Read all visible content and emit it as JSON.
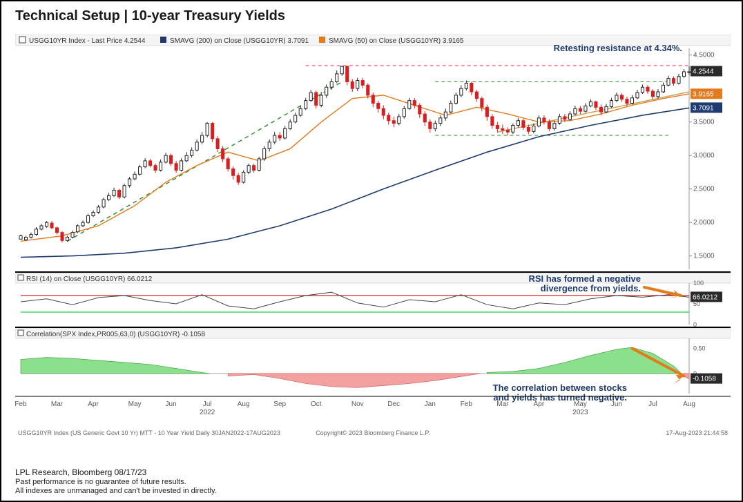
{
  "title": "Technical Setup | 10-year Treasury Yields",
  "legend": {
    "series1": "USGG10YR Index - Last Price 4.2544",
    "series2": "SMAVG (200)  on Close (USGG10YR) 3.7091",
    "series3": "SMAVG (50)  on Close (USGG10YR) 3.9165",
    "rsi": "RSI (14)  on Close (USGG10YR) 66.0212",
    "corr": "Correlation(SPX Index,PR005,63,0) (USGG10YR) -0.1058"
  },
  "annotations": {
    "resistance": "Retesting resistance at 4.34%.",
    "rsi_div1": "RSI has formed a negative",
    "rsi_div2": "divergence from yields.",
    "corr1": "The correlation between stocks",
    "corr2": "and yields has turned negative."
  },
  "price_markers": {
    "last": "4.2544",
    "sma50": "3.9165",
    "sma200": "3.7091",
    "rsi_val": "66.0212",
    "rsi_50": "50",
    "corr_val": "-0.1058"
  },
  "colors": {
    "sma200": "#1f3a6e",
    "sma50": "#e37a1c",
    "candle_up": "#222",
    "candle_dn": "#d62020",
    "resistance_line": "#e35a7a",
    "trend_line": "#2e8b2e",
    "rsi_line": "#444",
    "rsi_upper": "#d62020",
    "rsi_lower": "#22cc44",
    "corr_pos": "#8be08b",
    "corr_neg": "#f2a0a0",
    "arrow": "#e37a1c",
    "grid": "#cfcfcf",
    "axis_text": "#555",
    "marker_dark": "#2a2a2a",
    "marker_orange": "#e37a1c",
    "marker_navy": "#1f3a6e"
  },
  "price_axis": {
    "min": 1.3,
    "max": 4.6,
    "ticks": [
      1.5,
      2.0,
      2.5,
      3.0,
      3.5,
      4.5
    ],
    "tick_labels": [
      "1.5000",
      "2.0000",
      "2.5000",
      "3.0000",
      "3.5000",
      "4.5000"
    ]
  },
  "rsi_axis": {
    "ticks": [
      0,
      100
    ],
    "labels": [
      "0",
      "100"
    ]
  },
  "corr_axis": {
    "ticks": [
      0,
      0.5
    ],
    "labels": [
      "0",
      "0.50"
    ]
  },
  "x_axis": {
    "labels": [
      "Feb",
      "Mar",
      "Apr",
      "May",
      "Jun",
      "Jul",
      "Aug",
      "Sep",
      "Oct",
      "Nov",
      "Dec",
      "Jan",
      "Feb",
      "Mar",
      "Apr",
      "May",
      "Jun",
      "Jul",
      "Aug"
    ],
    "year2022_under": "2022",
    "year2023_under": "2023"
  },
  "bloomberg_footer": {
    "left": "USGG10YR Index (US Generic Govt 10 Yr) MTT - 10 Year Yield  Daily 30JAN2022-17AUG2023",
    "center": "Copyright© 2023 Bloomberg Finance L.P.",
    "right": "17-Aug-2023 21:44:58"
  },
  "footer": {
    "source": "LPL Research, Bloomberg 08/17/23",
    "disc1": "Past performance is no guarantee of future results.",
    "disc2": "All indexes are unmanaged and can't be invested in directly."
  },
  "price_data": [
    [
      0,
      1.8,
      1.75,
      1.82,
      1.76
    ],
    [
      1,
      1.78,
      1.74,
      1.8,
      1.72
    ],
    [
      2,
      1.82,
      1.78,
      1.85,
      1.76
    ],
    [
      3,
      1.9,
      1.82,
      1.93,
      1.8
    ],
    [
      4,
      1.95,
      1.9,
      1.98,
      1.88
    ],
    [
      5,
      2.0,
      1.94,
      2.02,
      1.92
    ],
    [
      6,
      1.92,
      1.99,
      2.02,
      1.9
    ],
    [
      7,
      1.85,
      1.92,
      1.94,
      1.82
    ],
    [
      8,
      1.73,
      1.85,
      1.87,
      1.7
    ],
    [
      9,
      1.78,
      1.73,
      1.8,
      1.71
    ],
    [
      10,
      1.85,
      1.78,
      1.88,
      1.76
    ],
    [
      11,
      1.95,
      1.86,
      1.97,
      1.84
    ],
    [
      12,
      2.0,
      1.95,
      2.03,
      1.93
    ],
    [
      13,
      2.1,
      2.0,
      2.13,
      1.98
    ],
    [
      14,
      2.15,
      2.1,
      2.18,
      2.08
    ],
    [
      15,
      2.23,
      2.15,
      2.26,
      2.13
    ],
    [
      16,
      2.34,
      2.23,
      2.37,
      2.21
    ],
    [
      17,
      2.4,
      2.34,
      2.44,
      2.32
    ],
    [
      18,
      2.48,
      2.4,
      2.52,
      2.38
    ],
    [
      19,
      2.38,
      2.48,
      2.5,
      2.35
    ],
    [
      20,
      2.55,
      2.38,
      2.58,
      2.36
    ],
    [
      21,
      2.65,
      2.55,
      2.68,
      2.52
    ],
    [
      22,
      2.72,
      2.65,
      2.76,
      2.63
    ],
    [
      23,
      2.83,
      2.72,
      2.86,
      2.7
    ],
    [
      24,
      2.92,
      2.83,
      2.96,
      2.81
    ],
    [
      25,
      2.85,
      2.92,
      2.95,
      2.82
    ],
    [
      26,
      2.78,
      2.85,
      2.88,
      2.74
    ],
    [
      27,
      2.9,
      2.78,
      2.94,
      2.76
    ],
    [
      28,
      3.0,
      2.9,
      3.04,
      2.88
    ],
    [
      29,
      2.88,
      3.0,
      3.03,
      2.84
    ],
    [
      30,
      2.78,
      2.88,
      2.92,
      2.74
    ],
    [
      31,
      2.92,
      2.78,
      2.96,
      2.76
    ],
    [
      32,
      3.0,
      2.92,
      3.05,
      2.9
    ],
    [
      33,
      3.08,
      3.0,
      3.12,
      2.97
    ],
    [
      34,
      3.2,
      3.08,
      3.24,
      3.06
    ],
    [
      35,
      3.3,
      3.2,
      3.35,
      3.17
    ],
    [
      36,
      3.48,
      3.3,
      3.5,
      3.27
    ],
    [
      37,
      3.25,
      3.48,
      3.5,
      3.2
    ],
    [
      38,
      3.1,
      3.25,
      3.29,
      3.05
    ],
    [
      39,
      2.95,
      3.1,
      3.14,
      2.9
    ],
    [
      40,
      2.8,
      2.95,
      2.98,
      2.76
    ],
    [
      41,
      2.7,
      2.8,
      2.84,
      2.64
    ],
    [
      42,
      2.6,
      2.7,
      2.74,
      2.56
    ],
    [
      43,
      2.75,
      2.6,
      2.78,
      2.58
    ],
    [
      44,
      2.85,
      2.75,
      2.88,
      2.72
    ],
    [
      45,
      2.78,
      2.85,
      2.88,
      2.74
    ],
    [
      46,
      2.95,
      2.78,
      2.98,
      2.76
    ],
    [
      47,
      3.1,
      2.95,
      3.14,
      2.92
    ],
    [
      48,
      3.2,
      3.1,
      3.24,
      3.06
    ],
    [
      49,
      3.3,
      3.2,
      3.35,
      3.17
    ],
    [
      50,
      3.26,
      3.3,
      3.35,
      3.22
    ],
    [
      51,
      3.4,
      3.26,
      3.44,
      3.24
    ],
    [
      52,
      3.5,
      3.4,
      3.54,
      3.38
    ],
    [
      53,
      3.6,
      3.5,
      3.64,
      3.48
    ],
    [
      54,
      3.7,
      3.6,
      3.75,
      3.58
    ],
    [
      55,
      3.82,
      3.7,
      3.86,
      3.68
    ],
    [
      56,
      3.94,
      3.82,
      3.98,
      3.8
    ],
    [
      57,
      3.75,
      3.94,
      3.97,
      3.7
    ],
    [
      58,
      3.9,
      3.75,
      3.95,
      3.72
    ],
    [
      59,
      4.02,
      3.9,
      4.06,
      3.86
    ],
    [
      60,
      4.1,
      4.02,
      4.15,
      3.98
    ],
    [
      61,
      4.22,
      4.1,
      4.27,
      4.08
    ],
    [
      62,
      4.33,
      4.22,
      4.34,
      4.19
    ],
    [
      63,
      4.1,
      4.33,
      4.34,
      4.05
    ],
    [
      64,
      4.0,
      4.1,
      4.14,
      3.95
    ],
    [
      65,
      4.12,
      4.0,
      4.16,
      3.96
    ],
    [
      66,
      4.05,
      4.12,
      4.16,
      4.0
    ],
    [
      67,
      3.9,
      4.05,
      4.08,
      3.85
    ],
    [
      68,
      3.78,
      3.9,
      3.94,
      3.72
    ],
    [
      69,
      3.7,
      3.78,
      3.82,
      3.64
    ],
    [
      70,
      3.6,
      3.7,
      3.75,
      3.54
    ],
    [
      71,
      3.52,
      3.6,
      3.64,
      3.46
    ],
    [
      72,
      3.48,
      3.52,
      3.58,
      3.42
    ],
    [
      73,
      3.58,
      3.48,
      3.62,
      3.45
    ],
    [
      74,
      3.7,
      3.58,
      3.74,
      3.55
    ],
    [
      75,
      3.82,
      3.7,
      3.86,
      3.68
    ],
    [
      76,
      3.75,
      3.82,
      3.86,
      3.7
    ],
    [
      77,
      3.62,
      3.75,
      3.78,
      3.56
    ],
    [
      78,
      3.5,
      3.62,
      3.66,
      3.44
    ],
    [
      79,
      3.4,
      3.5,
      3.54,
      3.34
    ],
    [
      80,
      3.48,
      3.4,
      3.52,
      3.36
    ],
    [
      81,
      3.56,
      3.48,
      3.6,
      3.44
    ],
    [
      82,
      3.65,
      3.56,
      3.7,
      3.52
    ],
    [
      83,
      3.78,
      3.65,
      3.82,
      3.63
    ],
    [
      84,
      3.9,
      3.78,
      3.94,
      3.76
    ],
    [
      85,
      4.0,
      3.9,
      4.05,
      3.87
    ],
    [
      86,
      4.08,
      4.0,
      4.12,
      3.97
    ],
    [
      87,
      3.95,
      4.08,
      4.1,
      3.9
    ],
    [
      88,
      3.85,
      3.95,
      3.98,
      3.8
    ],
    [
      89,
      3.72,
      3.85,
      3.88,
      3.66
    ],
    [
      90,
      3.58,
      3.72,
      3.76,
      3.52
    ],
    [
      91,
      3.45,
      3.58,
      3.62,
      3.4
    ],
    [
      92,
      3.4,
      3.45,
      3.5,
      3.34
    ],
    [
      93,
      3.38,
      3.4,
      3.46,
      3.32
    ],
    [
      94,
      3.35,
      3.38,
      3.42,
      3.3
    ],
    [
      95,
      3.45,
      3.35,
      3.48,
      3.32
    ],
    [
      96,
      3.52,
      3.45,
      3.56,
      3.42
    ],
    [
      97,
      3.42,
      3.52,
      3.55,
      3.38
    ],
    [
      98,
      3.36,
      3.42,
      3.46,
      3.32
    ],
    [
      99,
      3.44,
      3.36,
      3.48,
      3.33
    ],
    [
      100,
      3.56,
      3.44,
      3.6,
      3.42
    ],
    [
      101,
      3.5,
      3.56,
      3.6,
      3.46
    ],
    [
      102,
      3.4,
      3.5,
      3.54,
      3.36
    ],
    [
      103,
      3.48,
      3.4,
      3.52,
      3.37
    ],
    [
      104,
      3.58,
      3.48,
      3.62,
      3.46
    ],
    [
      105,
      3.54,
      3.58,
      3.62,
      3.5
    ],
    [
      106,
      3.62,
      3.54,
      3.66,
      3.52
    ],
    [
      107,
      3.7,
      3.62,
      3.74,
      3.6
    ],
    [
      108,
      3.66,
      3.7,
      3.74,
      3.62
    ],
    [
      109,
      3.74,
      3.66,
      3.78,
      3.64
    ],
    [
      110,
      3.8,
      3.74,
      3.84,
      3.72
    ],
    [
      111,
      3.72,
      3.8,
      3.82,
      3.68
    ],
    [
      112,
      3.65,
      3.72,
      3.76,
      3.6
    ],
    [
      113,
      3.73,
      3.65,
      3.77,
      3.63
    ],
    [
      114,
      3.82,
      3.73,
      3.86,
      3.71
    ],
    [
      115,
      3.9,
      3.82,
      3.94,
      3.8
    ],
    [
      116,
      3.84,
      3.9,
      3.93,
      3.8
    ],
    [
      117,
      3.78,
      3.84,
      3.88,
      3.74
    ],
    [
      118,
      3.86,
      3.78,
      3.9,
      3.76
    ],
    [
      119,
      3.94,
      3.86,
      3.98,
      3.84
    ],
    [
      120,
      4.02,
      3.94,
      4.06,
      3.92
    ],
    [
      121,
      3.96,
      4.02,
      4.05,
      3.92
    ],
    [
      122,
      3.88,
      3.96,
      3.99,
      3.84
    ],
    [
      123,
      3.95,
      3.88,
      3.99,
      3.85
    ],
    [
      124,
      4.05,
      3.95,
      4.09,
      3.93
    ],
    [
      125,
      4.15,
      4.05,
      4.19,
      4.03
    ],
    [
      126,
      4.08,
      4.15,
      4.18,
      4.04
    ],
    [
      127,
      4.18,
      4.08,
      4.22,
      4.06
    ],
    [
      128,
      4.25,
      4.18,
      4.29,
      4.16
    ],
    [
      129,
      4.25,
      4.25,
      4.33,
      4.2
    ]
  ],
  "sma200": [
    [
      0,
      1.48
    ],
    [
      10,
      1.5
    ],
    [
      20,
      1.54
    ],
    [
      30,
      1.62
    ],
    [
      40,
      1.75
    ],
    [
      50,
      1.95
    ],
    [
      60,
      2.2
    ],
    [
      70,
      2.5
    ],
    [
      80,
      2.78
    ],
    [
      90,
      3.05
    ],
    [
      100,
      3.28
    ],
    [
      110,
      3.45
    ],
    [
      120,
      3.6
    ],
    [
      129,
      3.71
    ]
  ],
  "sma50": [
    [
      0,
      1.72
    ],
    [
      8,
      1.8
    ],
    [
      15,
      1.95
    ],
    [
      22,
      2.25
    ],
    [
      28,
      2.6
    ],
    [
      34,
      2.85
    ],
    [
      40,
      3.05
    ],
    [
      46,
      2.92
    ],
    [
      52,
      3.1
    ],
    [
      58,
      3.5
    ],
    [
      64,
      3.85
    ],
    [
      70,
      3.9
    ],
    [
      76,
      3.75
    ],
    [
      82,
      3.6
    ],
    [
      88,
      3.72
    ],
    [
      94,
      3.62
    ],
    [
      100,
      3.5
    ],
    [
      106,
      3.52
    ],
    [
      112,
      3.62
    ],
    [
      118,
      3.75
    ],
    [
      124,
      3.85
    ],
    [
      129,
      3.92
    ]
  ],
  "rsi_data": [
    [
      0,
      55
    ],
    [
      5,
      62
    ],
    [
      10,
      48
    ],
    [
      15,
      65
    ],
    [
      20,
      70
    ],
    [
      25,
      58
    ],
    [
      30,
      50
    ],
    [
      35,
      72
    ],
    [
      40,
      45
    ],
    [
      45,
      38
    ],
    [
      50,
      55
    ],
    [
      55,
      70
    ],
    [
      60,
      78
    ],
    [
      65,
      52
    ],
    [
      70,
      42
    ],
    [
      75,
      60
    ],
    [
      80,
      55
    ],
    [
      85,
      72
    ],
    [
      90,
      48
    ],
    [
      95,
      38
    ],
    [
      100,
      52
    ],
    [
      105,
      48
    ],
    [
      110,
      62
    ],
    [
      115,
      70
    ],
    [
      120,
      66
    ],
    [
      125,
      72
    ],
    [
      129,
      66
    ]
  ],
  "corr_data": [
    [
      0,
      0.28
    ],
    [
      5,
      0.32
    ],
    [
      10,
      0.3
    ],
    [
      15,
      0.26
    ],
    [
      20,
      0.22
    ],
    [
      25,
      0.18
    ],
    [
      30,
      0.1
    ],
    [
      35,
      0.02
    ],
    [
      40,
      -0.05
    ],
    [
      45,
      -0.02
    ],
    [
      50,
      -0.1
    ],
    [
      55,
      -0.2
    ],
    [
      60,
      -0.26
    ],
    [
      65,
      -0.28
    ],
    [
      70,
      -0.24
    ],
    [
      75,
      -0.2
    ],
    [
      80,
      -0.14
    ],
    [
      85,
      -0.06
    ],
    [
      90,
      0.02
    ],
    [
      95,
      0.04
    ],
    [
      100,
      0.1
    ],
    [
      105,
      0.22
    ],
    [
      110,
      0.36
    ],
    [
      115,
      0.48
    ],
    [
      118,
      0.52
    ],
    [
      122,
      0.4
    ],
    [
      126,
      0.15
    ],
    [
      128,
      -0.05
    ],
    [
      129,
      -0.11
    ]
  ]
}
